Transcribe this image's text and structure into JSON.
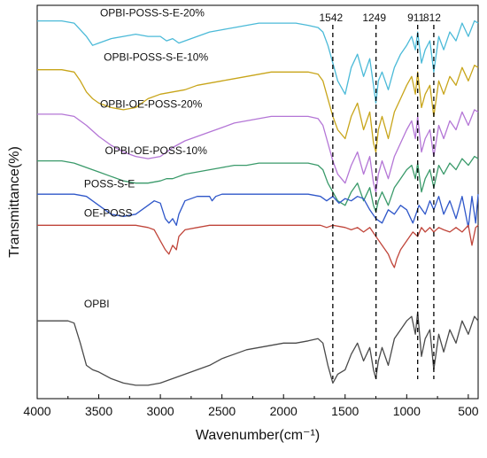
{
  "chart_data": {
    "type": "line",
    "xlabel": "Wavenumber(cm⁻¹)",
    "ylabel": "Transmittance(%)",
    "xlim": [
      4000,
      420
    ],
    "x_ticks": [
      4000,
      3500,
      3000,
      2500,
      2000,
      1500,
      1000,
      500
    ],
    "x_reversed": true,
    "y_ticks_shown": false,
    "grid": false,
    "reference_lines": [
      {
        "x": 1600,
        "label": "1542"
      },
      {
        "x": 1249,
        "label": "1249"
      },
      {
        "x": 911,
        "label": "911"
      },
      {
        "x": 780,
        "label": "812"
      }
    ],
    "series": [
      {
        "name": "OPBI-POSS-S-E-20%",
        "color": "#4bbad8",
        "x": [
          4000,
          3900,
          3800,
          3700,
          3600,
          3550,
          3500,
          3400,
          3300,
          3200,
          3100,
          3000,
          2950,
          2900,
          2850,
          2800,
          2700,
          2600,
          2500,
          2400,
          2300,
          2200,
          2100,
          2000,
          1900,
          1800,
          1720,
          1680,
          1640,
          1600,
          1560,
          1500,
          1450,
          1400,
          1350,
          1300,
          1270,
          1250,
          1230,
          1200,
          1150,
          1100,
          1050,
          1000,
          960,
          930,
          911,
          880,
          850,
          812,
          780,
          740,
          700,
          650,
          600,
          550,
          500,
          450,
          420
        ],
        "y": [
          95,
          95,
          95,
          94,
          88,
          84,
          85,
          87,
          88,
          89,
          88,
          88,
          86,
          87,
          85,
          86,
          88,
          90,
          91,
          92,
          93,
          94,
          94,
          94,
          94,
          93,
          92,
          90,
          84,
          76,
          68,
          62,
          74,
          80,
          70,
          78,
          66,
          58,
          68,
          72,
          64,
          74,
          80,
          84,
          88,
          82,
          90,
          76,
          82,
          86,
          72,
          88,
          82,
          90,
          86,
          94,
          88,
          95,
          94
        ]
      },
      {
        "name": "OPBI-POSS-S-E-10%",
        "color": "#c8a51a",
        "x": [
          4000,
          3900,
          3800,
          3700,
          3650,
          3600,
          3550,
          3500,
          3450,
          3400,
          3300,
          3200,
          3100,
          3000,
          2900,
          2800,
          2700,
          2600,
          2500,
          2400,
          2300,
          2200,
          2100,
          2000,
          1900,
          1800,
          1720,
          1680,
          1640,
          1600,
          1560,
          1500,
          1450,
          1400,
          1350,
          1300,
          1270,
          1250,
          1230,
          1200,
          1150,
          1100,
          1050,
          1000,
          960,
          930,
          911,
          880,
          850,
          812,
          780,
          740,
          700,
          650,
          600,
          550,
          500,
          450,
          420
        ],
        "y": [
          73,
          73,
          73,
          72,
          68,
          63,
          60,
          58,
          57,
          56,
          55,
          56,
          60,
          62,
          63,
          64,
          66,
          67,
          68,
          69,
          70,
          71,
          72,
          72,
          72,
          72,
          71,
          68,
          60,
          52,
          46,
          42,
          52,
          58,
          46,
          54,
          40,
          36,
          46,
          52,
          42,
          54,
          60,
          66,
          70,
          62,
          72,
          56,
          62,
          66,
          52,
          68,
          62,
          70,
          66,
          74,
          68,
          75,
          74
        ]
      },
      {
        "name": "OPBI-OE-POSS-20%",
        "color": "#b476d6",
        "x": [
          4000,
          3900,
          3800,
          3700,
          3600,
          3500,
          3400,
          3300,
          3200,
          3100,
          3000,
          2950,
          2900,
          2800,
          2700,
          2600,
          2500,
          2400,
          2300,
          2200,
          2100,
          2000,
          1900,
          1800,
          1720,
          1680,
          1640,
          1600,
          1560,
          1500,
          1450,
          1400,
          1350,
          1300,
          1270,
          1250,
          1230,
          1200,
          1150,
          1100,
          1050,
          1000,
          960,
          930,
          911,
          880,
          850,
          812,
          780,
          740,
          700,
          650,
          600,
          550,
          500,
          450,
          420
        ],
        "y": [
          53,
          53,
          53,
          52,
          48,
          43,
          39,
          36,
          34,
          33,
          34,
          36,
          38,
          41,
          43,
          45,
          47,
          49,
          50,
          51,
          52,
          52,
          52,
          52,
          51,
          48,
          40,
          32,
          26,
          22,
          30,
          36,
          26,
          34,
          22,
          18,
          26,
          32,
          24,
          34,
          40,
          46,
          50,
          42,
          52,
          36,
          42,
          46,
          34,
          48,
          42,
          50,
          46,
          54,
          48,
          55,
          54
        ]
      },
      {
        "name": "OPBI-OE-POSS-10%",
        "color": "#3a9a6a",
        "x": [
          4000,
          3900,
          3800,
          3700,
          3600,
          3500,
          3400,
          3300,
          3200,
          3100,
          3000,
          2950,
          2900,
          2800,
          2700,
          2600,
          2500,
          2400,
          2300,
          2200,
          2100,
          2000,
          1900,
          1800,
          1720,
          1680,
          1640,
          1600,
          1560,
          1500,
          1450,
          1400,
          1350,
          1300,
          1270,
          1250,
          1230,
          1200,
          1150,
          1100,
          1050,
          1000,
          960,
          930,
          911,
          880,
          850,
          812,
          780,
          740,
          700,
          650,
          600,
          550,
          500,
          450,
          420
        ],
        "y": [
          32,
          32,
          32,
          31,
          29,
          27,
          25,
          23,
          22,
          22,
          23,
          24,
          24,
          26,
          27,
          28,
          29,
          30,
          30,
          31,
          31,
          31,
          31,
          31,
          30,
          28,
          22,
          18,
          14,
          12,
          18,
          22,
          14,
          20,
          12,
          9,
          14,
          18,
          12,
          20,
          24,
          28,
          30,
          24,
          31,
          18,
          24,
          28,
          20,
          30,
          26,
          31,
          28,
          33,
          30,
          34,
          33
        ]
      },
      {
        "name": "POSS-S-E",
        "color": "#2f57c9",
        "x": [
          4000,
          3900,
          3800,
          3700,
          3600,
          3500,
          3400,
          3300,
          3200,
          3100,
          3050,
          3000,
          2960,
          2930,
          2900,
          2870,
          2850,
          2800,
          2700,
          2600,
          2580,
          2550,
          2500,
          2400,
          2300,
          2200,
          2100,
          2000,
          1900,
          1800,
          1700,
          1650,
          1600,
          1550,
          1500,
          1450,
          1400,
          1350,
          1300,
          1250,
          1200,
          1150,
          1100,
          1050,
          1000,
          950,
          900,
          850,
          812,
          780,
          740,
          700,
          650,
          600,
          550,
          500,
          470,
          440,
          420
        ],
        "y": [
          17,
          17,
          17,
          17,
          16,
          12,
          8,
          7,
          8,
          12,
          14,
          13,
          6,
          4,
          6,
          3,
          8,
          14,
          16,
          16,
          14,
          16,
          17,
          17,
          17,
          17,
          17,
          17,
          17,
          17,
          16,
          14,
          16,
          13,
          15,
          14,
          16,
          15,
          10,
          6,
          4,
          10,
          8,
          12,
          10,
          4,
          12,
          8,
          14,
          10,
          16,
          8,
          14,
          6,
          16,
          2,
          16,
          4,
          17
        ]
      },
      {
        "name": "OE-POSS",
        "color": "#c0453a",
        "x": [
          4000,
          3800,
          3600,
          3400,
          3200,
          3100,
          3050,
          3000,
          2960,
          2930,
          2900,
          2870,
          2850,
          2800,
          2700,
          2600,
          2500,
          2400,
          2200,
          2000,
          1800,
          1700,
          1650,
          1600,
          1500,
          1450,
          1400,
          1350,
          1300,
          1250,
          1200,
          1150,
          1120,
          1100,
          1080,
          1050,
          1000,
          950,
          911,
          880,
          850,
          812,
          780,
          740,
          700,
          650,
          600,
          550,
          500,
          470,
          440,
          420
        ],
        "y": [
          3,
          3,
          3,
          3,
          3,
          2,
          1,
          -4,
          -8,
          -10,
          -6,
          -8,
          -2,
          1,
          2,
          3,
          3,
          3,
          3,
          3,
          3,
          3,
          2,
          3,
          2,
          1,
          2,
          0,
          2,
          -2,
          -6,
          -10,
          -14,
          -16,
          -12,
          -8,
          -4,
          0,
          -2,
          2,
          0,
          2,
          0,
          2,
          1,
          0,
          2,
          0,
          3,
          -6,
          2,
          3
        ]
      },
      {
        "name": "OPBI",
        "color": "#4a4a4a",
        "x": [
          4000,
          3900,
          3800,
          3750,
          3700,
          3650,
          3600,
          3550,
          3500,
          3400,
          3300,
          3200,
          3100,
          3000,
          2900,
          2800,
          2700,
          2600,
          2500,
          2400,
          2300,
          2200,
          2100,
          2000,
          1900,
          1800,
          1720,
          1680,
          1640,
          1600,
          1560,
          1500,
          1450,
          1400,
          1350,
          1300,
          1270,
          1250,
          1230,
          1200,
          1150,
          1100,
          1050,
          1000,
          960,
          930,
          911,
          880,
          850,
          812,
          780,
          740,
          700,
          650,
          600,
          550,
          500,
          450,
          420
        ],
        "y": [
          -40,
          -40,
          -40,
          -40,
          -41,
          -50,
          -60,
          -62,
          -63,
          -66,
          -68,
          -69,
          -69,
          -68,
          -66,
          -64,
          -62,
          -60,
          -57,
          -55,
          -53,
          -52,
          -51,
          -50,
          -50,
          -49,
          -48,
          -50,
          -60,
          -68,
          -64,
          -62,
          -55,
          -50,
          -58,
          -52,
          -62,
          -66,
          -58,
          -52,
          -60,
          -48,
          -44,
          -40,
          -38,
          -46,
          -36,
          -56,
          -48,
          -44,
          -62,
          -46,
          -54,
          -44,
          -50,
          -40,
          -46,
          -38,
          -40
        ]
      }
    ],
    "label_positions": [
      {
        "series": 0,
        "x": 3490,
        "y": 97
      },
      {
        "series": 1,
        "x": 3460,
        "y": 77
      },
      {
        "series": 2,
        "x": 3490,
        "y": 56
      },
      {
        "series": 3,
        "x": 3450,
        "y": 35
      },
      {
        "series": 4,
        "x": 3620,
        "y": 20
      },
      {
        "series": 5,
        "x": 3620,
        "y": 7
      },
      {
        "series": 6,
        "x": 3620,
        "y": -34
      }
    ]
  }
}
